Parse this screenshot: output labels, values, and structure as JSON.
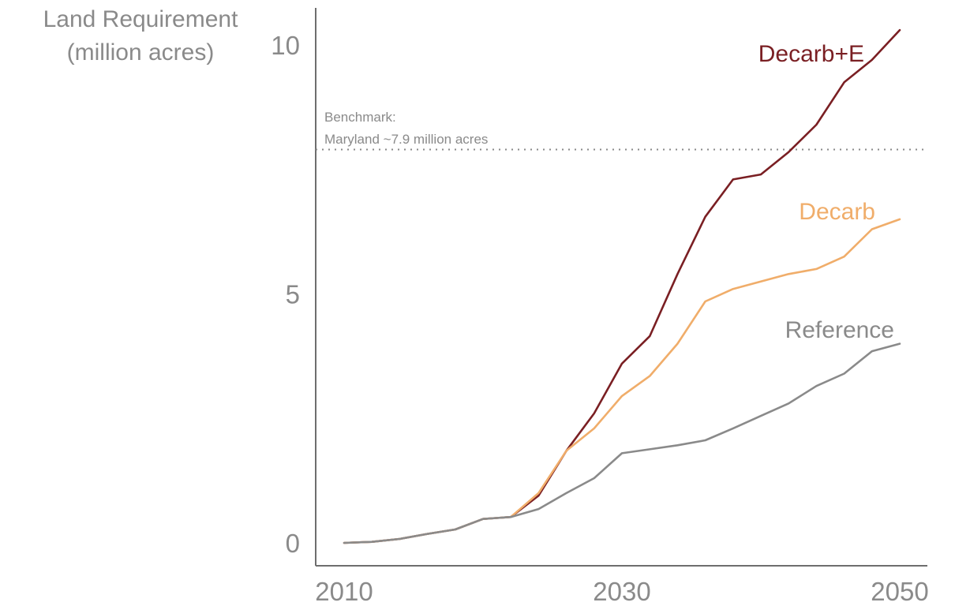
{
  "chart_data": {
    "type": "line",
    "ylabel_lines": [
      "Land Requirement",
      "(million acres)"
    ],
    "x": [
      2010,
      2012,
      2014,
      2016,
      2018,
      2020,
      2022,
      2024,
      2026,
      2028,
      2030,
      2032,
      2034,
      2036,
      2038,
      2040,
      2042,
      2044,
      2046,
      2048,
      2050
    ],
    "xlim": [
      2008,
      2052
    ],
    "ylim": [
      -0.5,
      10.7
    ],
    "xticks": [
      2010,
      2030,
      2050
    ],
    "yticks": [
      0,
      5,
      10
    ],
    "series": [
      {
        "name": "Decarb+E",
        "color": "#7a1f23",
        "values": [
          0.0,
          0.02,
          0.08,
          0.18,
          0.27,
          0.48,
          0.52,
          0.95,
          1.85,
          2.6,
          3.6,
          4.15,
          5.4,
          6.55,
          7.3,
          7.4,
          7.85,
          8.4,
          9.25,
          9.7,
          10.3
        ]
      },
      {
        "name": "Decarb",
        "color": "#f0ad6a",
        "values": [
          0.0,
          0.02,
          0.08,
          0.18,
          0.27,
          0.48,
          0.52,
          1.0,
          1.85,
          2.3,
          2.95,
          3.35,
          4.0,
          4.85,
          5.1,
          5.25,
          5.4,
          5.5,
          5.75,
          6.3,
          6.5
        ]
      },
      {
        "name": "Reference",
        "color": "#8a8a8a",
        "values": [
          0.0,
          0.02,
          0.08,
          0.18,
          0.27,
          0.48,
          0.52,
          0.68,
          1.0,
          1.3,
          1.8,
          1.88,
          1.96,
          2.06,
          2.3,
          2.55,
          2.8,
          3.15,
          3.4,
          3.85,
          4.0
        ]
      }
    ],
    "reference_line": {
      "value": 7.9,
      "label_lines": [
        "Benchmark:",
        "Maryland ~7.9 million acres"
      ]
    }
  }
}
